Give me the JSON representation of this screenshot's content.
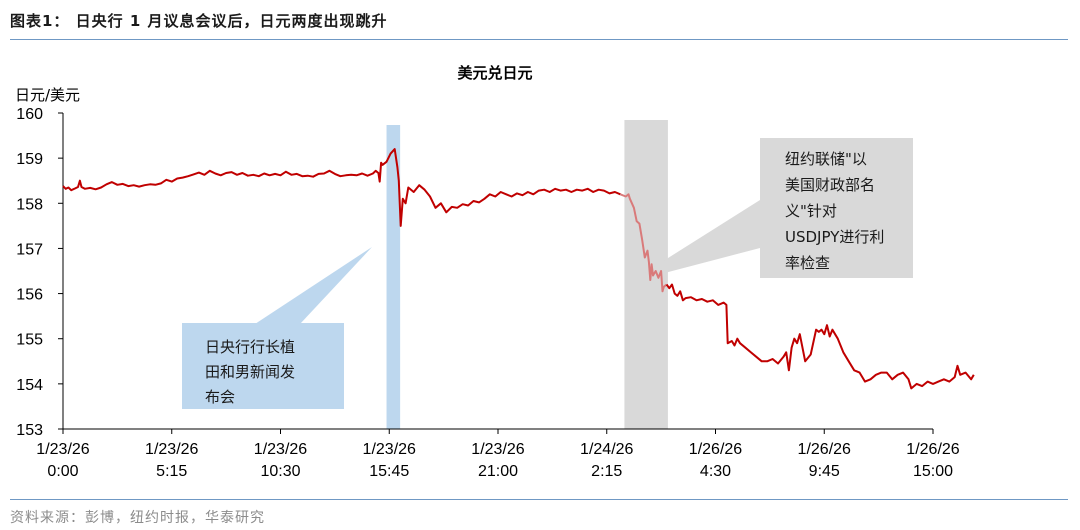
{
  "figure_title": "图表1： 日央行 1 月议息会议后，日元两度出现跳升",
  "source": "资料来源：彭博，纽约时报，华泰研究",
  "colors": {
    "line": "#c00000",
    "line_highlight": "#d97a7a",
    "blue_band": "#bdd7ee",
    "grey_band": "#d9d9d9",
    "rule": "#6f98c4"
  },
  "chart_data": {
    "type": "line",
    "title": "美元兑日元",
    "ylabel": "日元/美元",
    "ylim": [
      153,
      160
    ],
    "yticks": [
      153,
      154,
      155,
      156,
      157,
      158,
      159,
      160
    ],
    "xticks": [
      {
        "date": "1/23/26",
        "time": "0:00"
      },
      {
        "date": "1/23/26",
        "time": "5:15"
      },
      {
        "date": "1/23/26",
        "time": "10:30"
      },
      {
        "date": "1/23/26",
        "time": "15:45"
      },
      {
        "date": "1/23/26",
        "time": "21:00"
      },
      {
        "date": "1/24/26",
        "time": "2:15"
      },
      {
        "date": "1/26/26",
        "time": "4:30"
      },
      {
        "date": "1/26/26",
        "time": "9:45"
      },
      {
        "date": "1/26/26",
        "time": "15:00"
      }
    ],
    "series": [
      {
        "points": [
          [
            0.0,
            158.38
          ],
          [
            0.1,
            158.32
          ],
          [
            0.2,
            158.35
          ],
          [
            0.3,
            158.29
          ],
          [
            0.45,
            158.33
          ],
          [
            0.55,
            158.36
          ],
          [
            0.62,
            158.5
          ],
          [
            0.68,
            158.36
          ],
          [
            0.8,
            158.32
          ],
          [
            1.0,
            158.34
          ],
          [
            1.2,
            158.31
          ],
          [
            1.4,
            158.35
          ],
          [
            1.6,
            158.42
          ],
          [
            1.8,
            158.47
          ],
          [
            2.0,
            158.41
          ],
          [
            2.2,
            158.43
          ],
          [
            2.4,
            158.38
          ],
          [
            2.6,
            158.4
          ],
          [
            2.8,
            158.37
          ],
          [
            3.0,
            158.4
          ],
          [
            3.2,
            158.42
          ],
          [
            3.4,
            158.41
          ],
          [
            3.6,
            158.44
          ],
          [
            3.8,
            158.52
          ],
          [
            4.0,
            158.48
          ],
          [
            4.2,
            158.55
          ],
          [
            4.4,
            158.57
          ],
          [
            4.6,
            158.6
          ],
          [
            4.8,
            158.64
          ],
          [
            5.0,
            158.68
          ],
          [
            5.2,
            158.63
          ],
          [
            5.4,
            158.72
          ],
          [
            5.6,
            158.66
          ],
          [
            5.8,
            158.62
          ],
          [
            6.0,
            158.67
          ],
          [
            6.2,
            158.69
          ],
          [
            6.4,
            158.63
          ],
          [
            6.6,
            158.67
          ],
          [
            6.8,
            158.61
          ],
          [
            7.0,
            158.63
          ],
          [
            7.2,
            158.6
          ],
          [
            7.4,
            158.66
          ],
          [
            7.6,
            158.62
          ],
          [
            7.8,
            158.65
          ],
          [
            8.0,
            158.62
          ],
          [
            8.2,
            158.7
          ],
          [
            8.4,
            158.63
          ],
          [
            8.6,
            158.65
          ],
          [
            8.8,
            158.6
          ],
          [
            9.0,
            158.61
          ],
          [
            9.2,
            158.59
          ],
          [
            9.4,
            158.65
          ],
          [
            9.6,
            158.66
          ],
          [
            9.8,
            158.72
          ],
          [
            10.0,
            158.65
          ],
          [
            10.2,
            158.6
          ],
          [
            10.4,
            158.62
          ],
          [
            10.6,
            158.63
          ],
          [
            10.8,
            158.62
          ],
          [
            11.0,
            158.66
          ],
          [
            11.2,
            158.61
          ],
          [
            11.4,
            158.66
          ],
          [
            11.5,
            158.72
          ],
          [
            11.6,
            158.67
          ],
          [
            11.65,
            158.48
          ],
          [
            11.7,
            158.9
          ],
          [
            11.75,
            158.85
          ],
          [
            11.9,
            158.92
          ],
          [
            12.05,
            159.1
          ],
          [
            12.2,
            159.2
          ],
          [
            12.3,
            158.8
          ],
          [
            12.35,
            158.5
          ],
          [
            12.42,
            157.5
          ],
          [
            12.5,
            158.1
          ],
          [
            12.6,
            158.0
          ],
          [
            12.7,
            158.35
          ],
          [
            12.9,
            158.25
          ],
          [
            13.1,
            158.4
          ],
          [
            13.3,
            158.3
          ],
          [
            13.5,
            158.15
          ],
          [
            13.7,
            157.9
          ],
          [
            13.9,
            158.0
          ],
          [
            14.1,
            157.8
          ],
          [
            14.3,
            157.92
          ],
          [
            14.5,
            157.9
          ],
          [
            14.7,
            157.98
          ],
          [
            14.9,
            157.95
          ],
          [
            15.1,
            158.05
          ],
          [
            15.3,
            158.02
          ],
          [
            15.5,
            158.1
          ],
          [
            15.7,
            158.2
          ],
          [
            15.9,
            158.15
          ],
          [
            16.1,
            158.25
          ],
          [
            16.3,
            158.2
          ],
          [
            16.5,
            158.15
          ],
          [
            16.7,
            158.22
          ],
          [
            16.9,
            158.18
          ],
          [
            17.1,
            158.25
          ],
          [
            17.3,
            158.2
          ],
          [
            17.5,
            158.28
          ],
          [
            17.7,
            158.3
          ],
          [
            17.9,
            158.25
          ],
          [
            18.1,
            158.32
          ],
          [
            18.3,
            158.28
          ],
          [
            18.5,
            158.3
          ],
          [
            18.7,
            158.25
          ],
          [
            18.9,
            158.3
          ],
          [
            19.1,
            158.28
          ],
          [
            19.3,
            158.32
          ],
          [
            19.5,
            158.25
          ],
          [
            19.7,
            158.3
          ],
          [
            19.9,
            158.28
          ],
          [
            20.1,
            158.22
          ],
          [
            20.3,
            158.25
          ],
          [
            20.5,
            158.2
          ],
          [
            20.7,
            158.15
          ],
          [
            20.8,
            158.2
          ],
          [
            20.85,
            158.1
          ],
          [
            21.0,
            157.9
          ],
          [
            21.1,
            157.6
          ],
          [
            21.2,
            157.55
          ],
          [
            21.3,
            157.2
          ],
          [
            21.4,
            156.8
          ],
          [
            21.5,
            156.95
          ],
          [
            21.55,
            156.7
          ],
          [
            21.6,
            156.3
          ],
          [
            21.65,
            156.65
          ],
          [
            21.7,
            156.4
          ],
          [
            21.8,
            156.5
          ],
          [
            21.9,
            156.35
          ],
          [
            22.0,
            156.5
          ],
          [
            22.05,
            156.05
          ],
          [
            22.1,
            156.15
          ],
          [
            22.2,
            156.2
          ],
          [
            22.3,
            156.12
          ],
          [
            22.4,
            156.2
          ],
          [
            22.5,
            156.0
          ],
          [
            22.6,
            155.95
          ],
          [
            22.7,
            156.05
          ],
          [
            22.8,
            155.85
          ],
          [
            22.9,
            155.9
          ],
          [
            23.1,
            155.92
          ],
          [
            23.3,
            155.85
          ],
          [
            23.5,
            155.88
          ],
          [
            23.7,
            155.82
          ],
          [
            23.9,
            155.85
          ],
          [
            24.1,
            155.75
          ],
          [
            24.3,
            155.8
          ],
          [
            24.4,
            155.75
          ],
          [
            24.45,
            154.9
          ],
          [
            24.6,
            154.95
          ],
          [
            24.7,
            154.85
          ],
          [
            24.8,
            155.0
          ],
          [
            24.9,
            154.9
          ],
          [
            25.1,
            154.8
          ],
          [
            25.3,
            154.7
          ],
          [
            25.5,
            154.6
          ],
          [
            25.7,
            154.5
          ],
          [
            25.9,
            154.5
          ],
          [
            26.1,
            154.55
          ],
          [
            26.3,
            154.45
          ],
          [
            26.5,
            154.6
          ],
          [
            26.6,
            154.7
          ],
          [
            26.7,
            154.3
          ],
          [
            26.8,
            154.8
          ],
          [
            26.9,
            155.0
          ],
          [
            27.0,
            154.9
          ],
          [
            27.1,
            155.1
          ],
          [
            27.3,
            154.5
          ],
          [
            27.5,
            154.65
          ],
          [
            27.7,
            155.2
          ],
          [
            27.8,
            155.15
          ],
          [
            27.9,
            155.2
          ],
          [
            28.0,
            155.1
          ],
          [
            28.1,
            155.3
          ],
          [
            28.2,
            155.05
          ],
          [
            28.3,
            155.2
          ],
          [
            28.5,
            155.0
          ],
          [
            28.7,
            154.7
          ],
          [
            28.9,
            154.5
          ],
          [
            29.1,
            154.3
          ],
          [
            29.3,
            154.25
          ],
          [
            29.5,
            154.05
          ],
          [
            29.7,
            154.1
          ],
          [
            29.9,
            154.2
          ],
          [
            30.1,
            154.25
          ],
          [
            30.3,
            154.25
          ],
          [
            30.5,
            154.1
          ],
          [
            30.7,
            154.2
          ],
          [
            30.9,
            154.25
          ],
          [
            31.1,
            154.1
          ],
          [
            31.2,
            153.9
          ],
          [
            31.4,
            154.0
          ],
          [
            31.6,
            153.95
          ],
          [
            31.8,
            154.05
          ],
          [
            32.0,
            154.0
          ],
          [
            32.2,
            154.05
          ],
          [
            32.4,
            154.1
          ],
          [
            32.6,
            154.05
          ],
          [
            32.8,
            154.15
          ],
          [
            32.9,
            154.4
          ],
          [
            33.0,
            154.2
          ],
          [
            33.2,
            154.25
          ],
          [
            33.4,
            154.1
          ],
          [
            33.5,
            154.2
          ]
        ]
      }
    ],
    "highlights": [
      {
        "name": "blue",
        "from": 11.9,
        "to": 12.4
      },
      {
        "name": "grey",
        "from": 20.65,
        "to": 22.25
      }
    ],
    "annotations": [
      {
        "id": "boj",
        "lines": [
          "日央行行长植",
          "田和男新闻发",
          "布会"
        ]
      },
      {
        "id": "fed",
        "lines": [
          "纽约联储\"以",
          "美国财政部名",
          "义\"针对",
          "USDJPY进行利",
          "率检查"
        ]
      }
    ]
  }
}
